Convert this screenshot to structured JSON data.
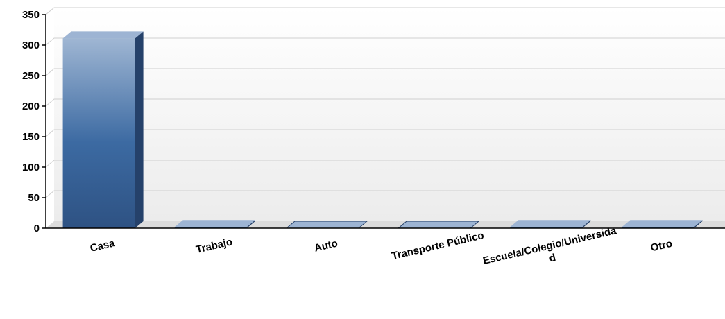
{
  "chart_data": {
    "type": "bar",
    "categories": [
      "Casa",
      "Trabajo",
      "Auto",
      "Transporte Público",
      "Escuela/Colegio/Universidad",
      "Otro"
    ],
    "category_tick_labels": [
      [
        "Casa"
      ],
      [
        "Trabajo"
      ],
      [
        "Auto"
      ],
      [
        "Transporte Público"
      ],
      [
        "Escuela/Colegio/Universida",
        "d"
      ],
      [
        "Otro"
      ]
    ],
    "values": [
      311,
      2,
      0,
      0,
      2,
      2
    ],
    "title": "",
    "xlabel": "",
    "ylabel": "",
    "ylim": [
      0,
      350
    ],
    "yticks": [
      0,
      50,
      100,
      150,
      200,
      250,
      300,
      350
    ],
    "grid": true,
    "legend": "none",
    "style": "3d",
    "colors": {
      "bar_top": "#9db4d3",
      "bar_front_light": "#9fb6d3",
      "bar_front_mid": "#3c6aa2",
      "bar_front_dark": "#2e5283",
      "bar_side": "#25416a",
      "plot_bg_top": "#ffffff",
      "plot_bg_bottom": "#ececec",
      "floor": "#dcdcdc",
      "grid": "#cfcfcf",
      "axis": "#000000"
    }
  }
}
